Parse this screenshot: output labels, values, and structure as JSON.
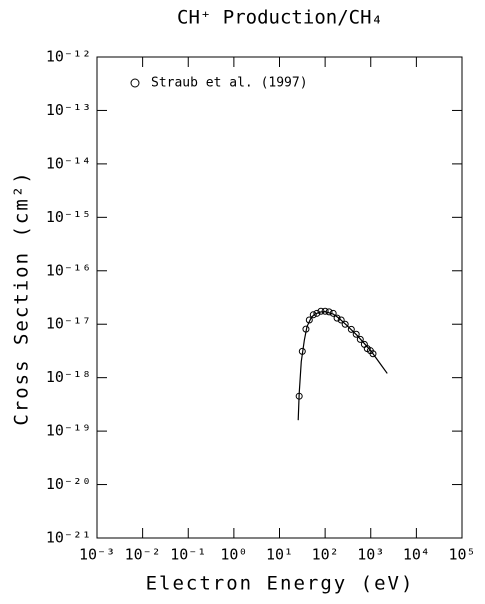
{
  "chart_data": {
    "type": "scatter",
    "title": "CH⁺ Production/CH₄",
    "x_label": "Electron Energy (eV)",
    "y_label": "Cross Section (cm²)",
    "x_log": true,
    "y_log": true,
    "xlim": [
      0.001,
      100000
    ],
    "ylim": [
      1e-21,
      1e-12
    ],
    "xticks": [
      {
        "value": 0.001,
        "label": "10⁻³"
      },
      {
        "value": 0.01,
        "label": "10⁻²"
      },
      {
        "value": 0.1,
        "label": "10⁻¹"
      },
      {
        "value": 1,
        "label": "10⁰"
      },
      {
        "value": 10,
        "label": "10¹"
      },
      {
        "value": 100,
        "label": "10²"
      },
      {
        "value": 1000,
        "label": "10³"
      },
      {
        "value": 10000,
        "label": "10⁴"
      },
      {
        "value": 100000,
        "label": "10⁵"
      }
    ],
    "yticks": [
      {
        "value": 1e-21,
        "label": "10⁻²¹"
      },
      {
        "value": 1e-20,
        "label": "10⁻²⁰"
      },
      {
        "value": 1e-19,
        "label": "10⁻¹⁹"
      },
      {
        "value": 1e-18,
        "label": "10⁻¹⁸"
      },
      {
        "value": 1e-17,
        "label": "10⁻¹⁷"
      },
      {
        "value": 1e-16,
        "label": "10⁻¹⁶"
      },
      {
        "value": 1e-15,
        "label": "10⁻¹⁵"
      },
      {
        "value": 1e-14,
        "label": "10⁻¹⁴"
      },
      {
        "value": 1e-13,
        "label": "10⁻¹³"
      },
      {
        "value": 1e-12,
        "label": "10⁻¹²"
      }
    ],
    "legend": "upper left",
    "series": [
      {
        "name": "Straub et al. (1997)",
        "color": "#000000",
        "marker": "open-circle",
        "x": [
          27,
          31.6,
          38,
          45,
          55,
          66,
          81,
          100,
          122,
          150,
          183,
          225,
          275,
          375,
          480,
          590,
          725,
          840,
          980,
          1120
        ],
        "values": [
          4.5e-19,
          3.1e-18,
          8.1e-18,
          1.2e-17,
          1.5e-17,
          1.6e-17,
          1.75e-17,
          1.75e-17,
          1.7e-17,
          1.6e-17,
          1.3e-17,
          1.2e-17,
          1e-17,
          8e-18,
          6.5e-18,
          5.2e-18,
          4.2e-18,
          3.5e-18,
          3.2e-18,
          2.8e-18
        ]
      },
      {
        "color": "#000000",
        "marker": "line",
        "x": [
          25.7,
          27,
          30,
          35,
          40,
          50,
          60,
          80,
          100,
          150,
          200,
          300,
          500,
          1000,
          2300
        ],
        "values": [
          1.6e-19,
          5e-19,
          2e-18,
          5e-18,
          9e-18,
          1.35e-17,
          1.55e-17,
          1.7e-17,
          1.72e-17,
          1.55e-17,
          1.3e-17,
          9.5e-18,
          6.2e-18,
          3.2e-18,
          1.2e-18
        ]
      }
    ]
  }
}
